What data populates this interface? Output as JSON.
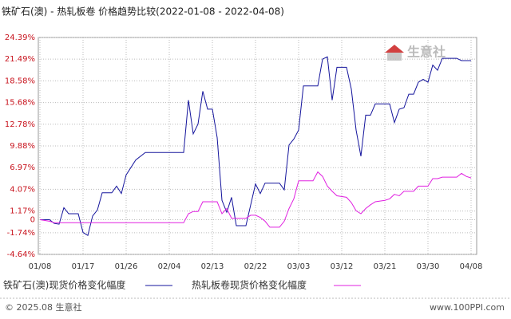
{
  "chart_data": {
    "type": "line",
    "title": "铁矿石(澳) - 热轧板卷 价格趋势比较(2022-01-08 - 2022-04-08)",
    "watermark": "生意社",
    "x": [
      "2022-01-08",
      "2022-01-10",
      "2022-01-11",
      "2022-01-12",
      "2022-01-13",
      "2022-01-14",
      "2022-01-16",
      "2022-01-17",
      "2022-01-18",
      "2022-01-19",
      "2022-01-20",
      "2022-01-21",
      "2022-01-23",
      "2022-01-24",
      "2022-01-25",
      "2022-01-26",
      "2022-01-28",
      "2022-01-30",
      "2022-02-02",
      "2022-02-07",
      "2022-02-08",
      "2022-02-09",
      "2022-02-10",
      "2022-02-11",
      "2022-02-12",
      "2022-02-13",
      "2022-02-14",
      "2022-02-15",
      "2022-02-16",
      "2022-02-17",
      "2022-02-18",
      "2022-02-20",
      "2022-02-21",
      "2022-02-22",
      "2022-02-23",
      "2022-02-24",
      "2022-02-25",
      "2022-02-27",
      "2022-02-28",
      "2022-03-01",
      "2022-03-02",
      "2022-03-03",
      "2022-03-04",
      "2022-03-06",
      "2022-03-07",
      "2022-03-08",
      "2022-03-09",
      "2022-03-10",
      "2022-03-11",
      "2022-03-13",
      "2022-03-14",
      "2022-03-15",
      "2022-03-16",
      "2022-03-17",
      "2022-03-18",
      "2022-03-19",
      "2022-03-21",
      "2022-03-22",
      "2022-03-23",
      "2022-03-24",
      "2022-03-25",
      "2022-03-26",
      "2022-03-27",
      "2022-03-28",
      "2022-03-29",
      "2022-03-30",
      "2022-03-31",
      "2022-04-01",
      "2022-04-02",
      "2022-04-05",
      "2022-04-06",
      "2022-04-07",
      "2022-04-08"
    ],
    "series": [
      {
        "name": "铁矿石(澳)现货价格变化幅度",
        "color": "#14149c",
        "values": [
          0,
          0,
          -0.5,
          -0.6,
          1.6,
          0.8,
          0.8,
          -1.7,
          -2.1,
          0.5,
          1.3,
          3.6,
          3.6,
          4.5,
          3.5,
          6.0,
          8.0,
          9.0,
          9.0,
          9.0,
          16.0,
          11.5,
          12.8,
          17.2,
          14.8,
          14.8,
          11.0,
          2.6,
          1.0,
          3.0,
          -0.8,
          -0.8,
          2.0,
          4.8,
          3.5,
          4.9,
          4.9,
          4.9,
          4.0,
          10.0,
          10.8,
          12.0,
          17.9,
          17.9,
          17.9,
          21.5,
          21.8,
          16.0,
          20.4,
          20.4,
          17.5,
          12.0,
          8.5,
          14.0,
          14.0,
          15.5,
          15.5,
          15.5,
          13.0,
          14.8,
          15.0,
          16.8,
          16.8,
          18.4,
          18.8,
          18.4,
          20.7,
          20.0,
          21.6,
          21.6,
          21.3,
          21.3,
          21.3
        ]
      },
      {
        "name": "热轧板卷现货价格变化幅度",
        "color": "#e020e0",
        "values": [
          0,
          -0.2,
          -0.4,
          -0.4,
          -0.4,
          -0.4,
          -0.4,
          -0.4,
          -0.4,
          -0.4,
          -0.4,
          -0.4,
          -0.4,
          -0.4,
          -0.4,
          -0.4,
          -0.4,
          -0.4,
          -0.4,
          -0.4,
          0.8,
          1.1,
          1.1,
          2.4,
          2.4,
          2.4,
          2.4,
          0.8,
          1.5,
          0.2,
          0.2,
          0.2,
          0.6,
          0.6,
          0.3,
          -0.2,
          -1.0,
          -1.0,
          -0.2,
          1.5,
          2.8,
          5.2,
          5.2,
          5.2,
          6.4,
          5.8,
          4.5,
          3.8,
          3.2,
          3.0,
          2.3,
          1.2,
          0.8,
          1.5,
          2.0,
          2.4,
          2.6,
          2.8,
          3.4,
          3.2,
          3.8,
          3.8,
          3.8,
          4.5,
          4.5,
          4.5,
          5.5,
          5.5,
          5.7,
          5.7,
          6.2,
          5.8,
          5.6
        ]
      }
    ],
    "xlim": [
      "2022-01-08",
      "2022-04-08"
    ],
    "xticks": [
      {
        "value": "2022-01-08",
        "label": "01/08"
      },
      {
        "value": "2022-01-17",
        "label": "01/17"
      },
      {
        "value": "2022-01-26",
        "label": "01/26"
      },
      {
        "value": "2022-02-04",
        "label": "02/04"
      },
      {
        "value": "2022-02-13",
        "label": "02/13"
      },
      {
        "value": "2022-02-22",
        "label": "02/22"
      },
      {
        "value": "2022-03-03",
        "label": "03/03"
      },
      {
        "value": "2022-03-12",
        "label": "03/12"
      },
      {
        "value": "2022-03-21",
        "label": "03/21"
      },
      {
        "value": "2022-03-30",
        "label": "03/30"
      },
      {
        "value": "2022-04-08",
        "label": "04/08"
      }
    ],
    "ylim": [
      -4.64,
      24.39
    ],
    "yticks": [
      {
        "value": 24.39,
        "label": "24.39%"
      },
      {
        "value": 21.49,
        "label": "21.49%"
      },
      {
        "value": 18.58,
        "label": "18.58%"
      },
      {
        "value": 15.68,
        "label": "15.68%"
      },
      {
        "value": 12.78,
        "label": "12.78%"
      },
      {
        "value": 9.88,
        "label": "9.88%"
      },
      {
        "value": 6.97,
        "label": "6.97%"
      },
      {
        "value": 4.07,
        "label": "4.07%"
      },
      {
        "value": 1.17,
        "label": "1.17%"
      },
      0,
      {
        "value": -1.74,
        "label": "-1.74%"
      },
      {
        "value": -4.64,
        "label": "-4.64%"
      }
    ],
    "grid": true
  },
  "footer": {
    "copyright": "© 2025.08 生意社",
    "site": "www.100PPI.com"
  }
}
